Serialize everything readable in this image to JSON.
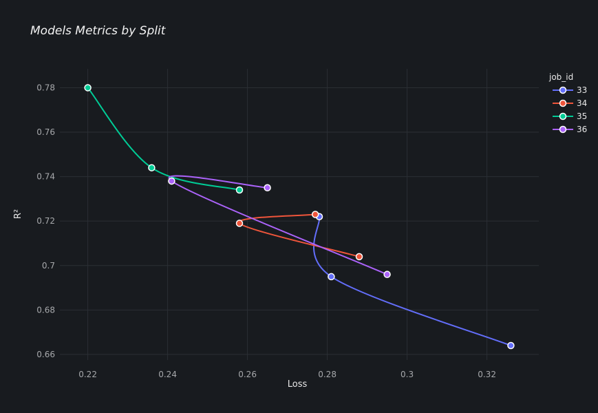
{
  "chart_data": {
    "type": "line",
    "title": "Models Metrics by Split",
    "xlabel": "Loss",
    "ylabel": "R²",
    "xlim": [
      0.213,
      0.333
    ],
    "ylim": [
      0.6575,
      0.7885
    ],
    "x_ticks": [
      0.22,
      0.24,
      0.26,
      0.28,
      0.3,
      0.32
    ],
    "x_tick_labels": [
      "0.22",
      "0.24",
      "0.26",
      "0.28",
      "0.3",
      "0.32"
    ],
    "y_ticks": [
      0.66,
      0.68,
      0.7,
      0.72,
      0.74,
      0.76,
      0.78
    ],
    "y_tick_labels": [
      "0.66",
      "0.68",
      "0.7",
      "0.72",
      "0.74",
      "0.76",
      "0.78"
    ],
    "grid": true,
    "legend_title": "job_id",
    "legend_position": "top-right",
    "series": [
      {
        "name": "33",
        "color": "#636efa",
        "points": [
          [
            0.326,
            0.664
          ],
          [
            0.281,
            0.695
          ],
          [
            0.278,
            0.722
          ]
        ]
      },
      {
        "name": "34",
        "color": "#ef553b",
        "points": [
          [
            0.288,
            0.704
          ],
          [
            0.258,
            0.719
          ],
          [
            0.277,
            0.723
          ]
        ]
      },
      {
        "name": "35",
        "color": "#00cc96",
        "points": [
          [
            0.22,
            0.78
          ],
          [
            0.236,
            0.744
          ],
          [
            0.258,
            0.734
          ]
        ]
      },
      {
        "name": "36",
        "color": "#ab63fa",
        "points": [
          [
            0.295,
            0.696
          ],
          [
            0.241,
            0.738
          ],
          [
            0.265,
            0.735
          ]
        ]
      }
    ]
  }
}
